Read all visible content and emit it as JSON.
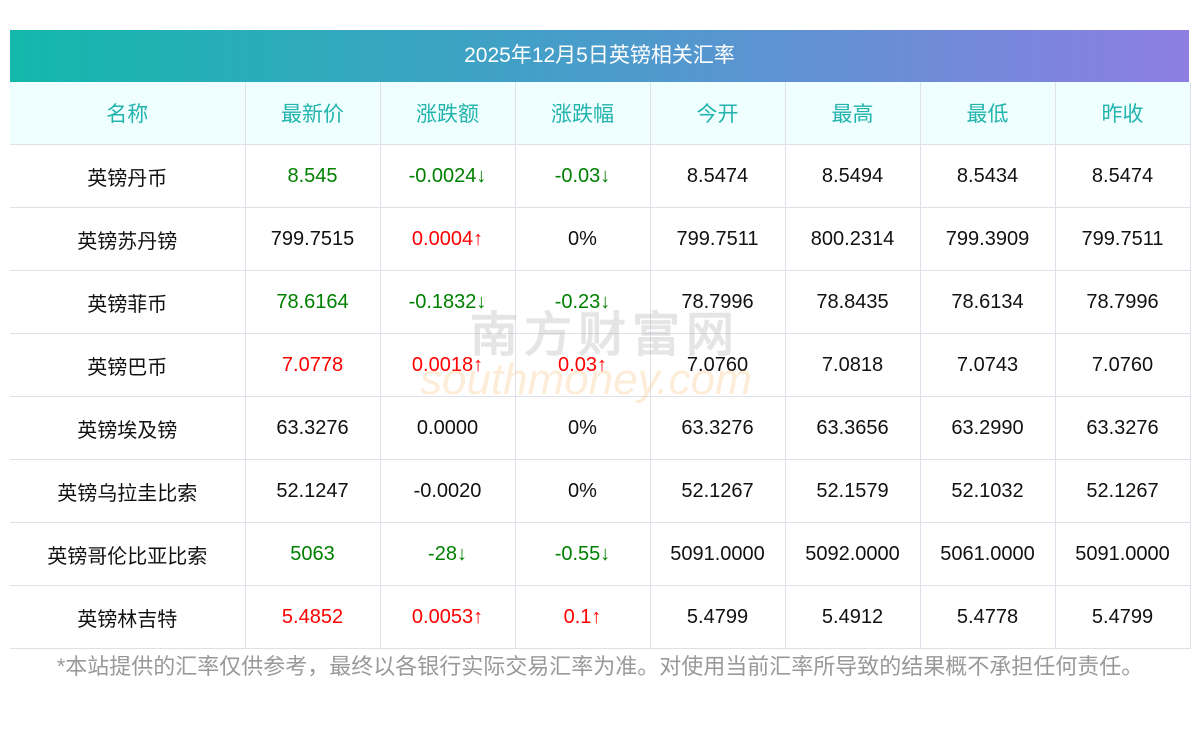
{
  "title": "2025年12月5日英镑相关汇率",
  "headers": [
    "名称",
    "最新价",
    "涨跌额",
    "涨跌幅",
    "今开",
    "最高",
    "最低",
    "昨收"
  ],
  "rows": [
    {
      "name": "英镑丹币",
      "latest": "8.545",
      "change": "-0.0024↓",
      "pct": "-0.03↓",
      "open": "8.5474",
      "high": "8.5494",
      "low": "8.5434",
      "prev": "8.5474",
      "lc": "down",
      "cc": "down",
      "pc": "down"
    },
    {
      "name": "英镑苏丹镑",
      "latest": "799.7515",
      "change": "0.0004↑",
      "pct": "0%",
      "open": "799.7511",
      "high": "800.2314",
      "low": "799.3909",
      "prev": "799.7511",
      "lc": "flat",
      "cc": "up",
      "pc": "flat"
    },
    {
      "name": "英镑菲币",
      "latest": "78.6164",
      "change": "-0.1832↓",
      "pct": "-0.23↓",
      "open": "78.7996",
      "high": "78.8435",
      "low": "78.6134",
      "prev": "78.7996",
      "lc": "down",
      "cc": "down",
      "pc": "down"
    },
    {
      "name": "英镑巴币",
      "latest": "7.0778",
      "change": "0.0018↑",
      "pct": "0.03↑",
      "open": "7.0760",
      "high": "7.0818",
      "low": "7.0743",
      "prev": "7.0760",
      "lc": "up",
      "cc": "up",
      "pc": "up"
    },
    {
      "name": "英镑埃及镑",
      "latest": "63.3276",
      "change": "0.0000",
      "pct": "0%",
      "open": "63.3276",
      "high": "63.3656",
      "low": "63.2990",
      "prev": "63.3276",
      "lc": "flat",
      "cc": "flat",
      "pc": "flat"
    },
    {
      "name": "英镑乌拉圭比索",
      "latest": "52.1247",
      "change": "-0.0020",
      "pct": "0%",
      "open": "52.1267",
      "high": "52.1579",
      "low": "52.1032",
      "prev": "52.1267",
      "lc": "flat",
      "cc": "flat",
      "pc": "flat"
    },
    {
      "name": "英镑哥伦比亚比索",
      "latest": "5063",
      "change": "-28↓",
      "pct": "-0.55↓",
      "open": "5091.0000",
      "high": "5092.0000",
      "low": "5061.0000",
      "prev": "5091.0000",
      "lc": "down",
      "cc": "down",
      "pc": "down"
    },
    {
      "name": "英镑林吉特",
      "latest": "5.4852",
      "change": "0.0053↑",
      "pct": "0.1↑",
      "open": "5.4799",
      "high": "5.4912",
      "low": "5.4778",
      "prev": "5.4799",
      "lc": "up",
      "cc": "up",
      "pc": "up"
    }
  ],
  "note": "*本站提供的汇率仅供参考，最终以各银行实际交易汇率为准。对使用当前汇率所导致的结果概不承担任何责任。",
  "watermark": {
    "cn": "南方财富网",
    "en": "southmoney.com"
  },
  "colors": {
    "up": "#ff0000",
    "down": "#008000",
    "header_text": "#22b4ad"
  }
}
